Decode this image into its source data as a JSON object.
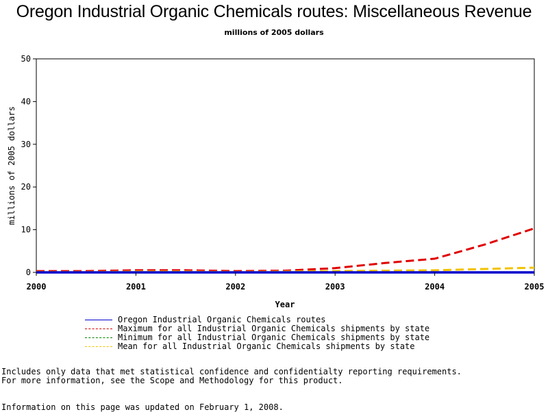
{
  "title": "Oregon Industrial Organic Chemicals routes: Miscellaneous Revenue",
  "subtitle": "millions of 2005 dollars",
  "chart_data": {
    "type": "line",
    "title": "Oregon Industrial Organic Chemicals routes: Miscellaneous Revenue",
    "subtitle": "millions of 2005 dollars",
    "xlabel": "Year",
    "ylabel": "millions of 2005 dollars",
    "x": [
      2000,
      2000.5,
      2001,
      2001.5,
      2002,
      2002.5,
      2003,
      2003.5,
      2004,
      2004.5,
      2005
    ],
    "xlim": [
      2000,
      2005
    ],
    "ylim": [
      0,
      50
    ],
    "xticks": [
      "2000",
      "2001",
      "2002",
      "2003",
      "2004",
      "2005"
    ],
    "yticks": [
      "0",
      "10",
      "20",
      "30",
      "40",
      "50"
    ],
    "grid": false,
    "legend_position": "bottom",
    "series": [
      {
        "name": "Oregon Industrial Organic Chemicals routes",
        "color": "#0000cc",
        "style": "solid",
        "values": [
          0,
          0,
          0,
          0,
          0,
          0,
          0,
          0,
          0,
          0,
          0
        ]
      },
      {
        "name": "Maximum for all Industrial Organic Chemicals shipments by state",
        "color": "#e00000",
        "style": "dashed",
        "values": [
          0.3,
          0.3,
          0.5,
          0.5,
          0.3,
          0.4,
          1.0,
          2.2,
          3.2,
          6.5,
          10.3
        ]
      },
      {
        "name": "Minimum for all Industrial Organic Chemicals shipments by state",
        "color": "#008000",
        "style": "dashed",
        "values": [
          0,
          0,
          0,
          0,
          0,
          0,
          0,
          0,
          0,
          0,
          0
        ]
      },
      {
        "name": "Mean for all Industrial Organic Chemicals shipments by state",
        "color": "#f2c200",
        "style": "dashed",
        "values": [
          0.1,
          0.1,
          0.2,
          0.2,
          0.1,
          0.2,
          0.3,
          0.4,
          0.5,
          0.8,
          1.1
        ]
      }
    ]
  },
  "notes": {
    "line1": "Includes only data that met statistical confidence and confidentialty reporting requirements.",
    "line2": "For more information, see the Scope and Methodology for this product.",
    "line3": "Information on this page was updated on February 1, 2008."
  }
}
